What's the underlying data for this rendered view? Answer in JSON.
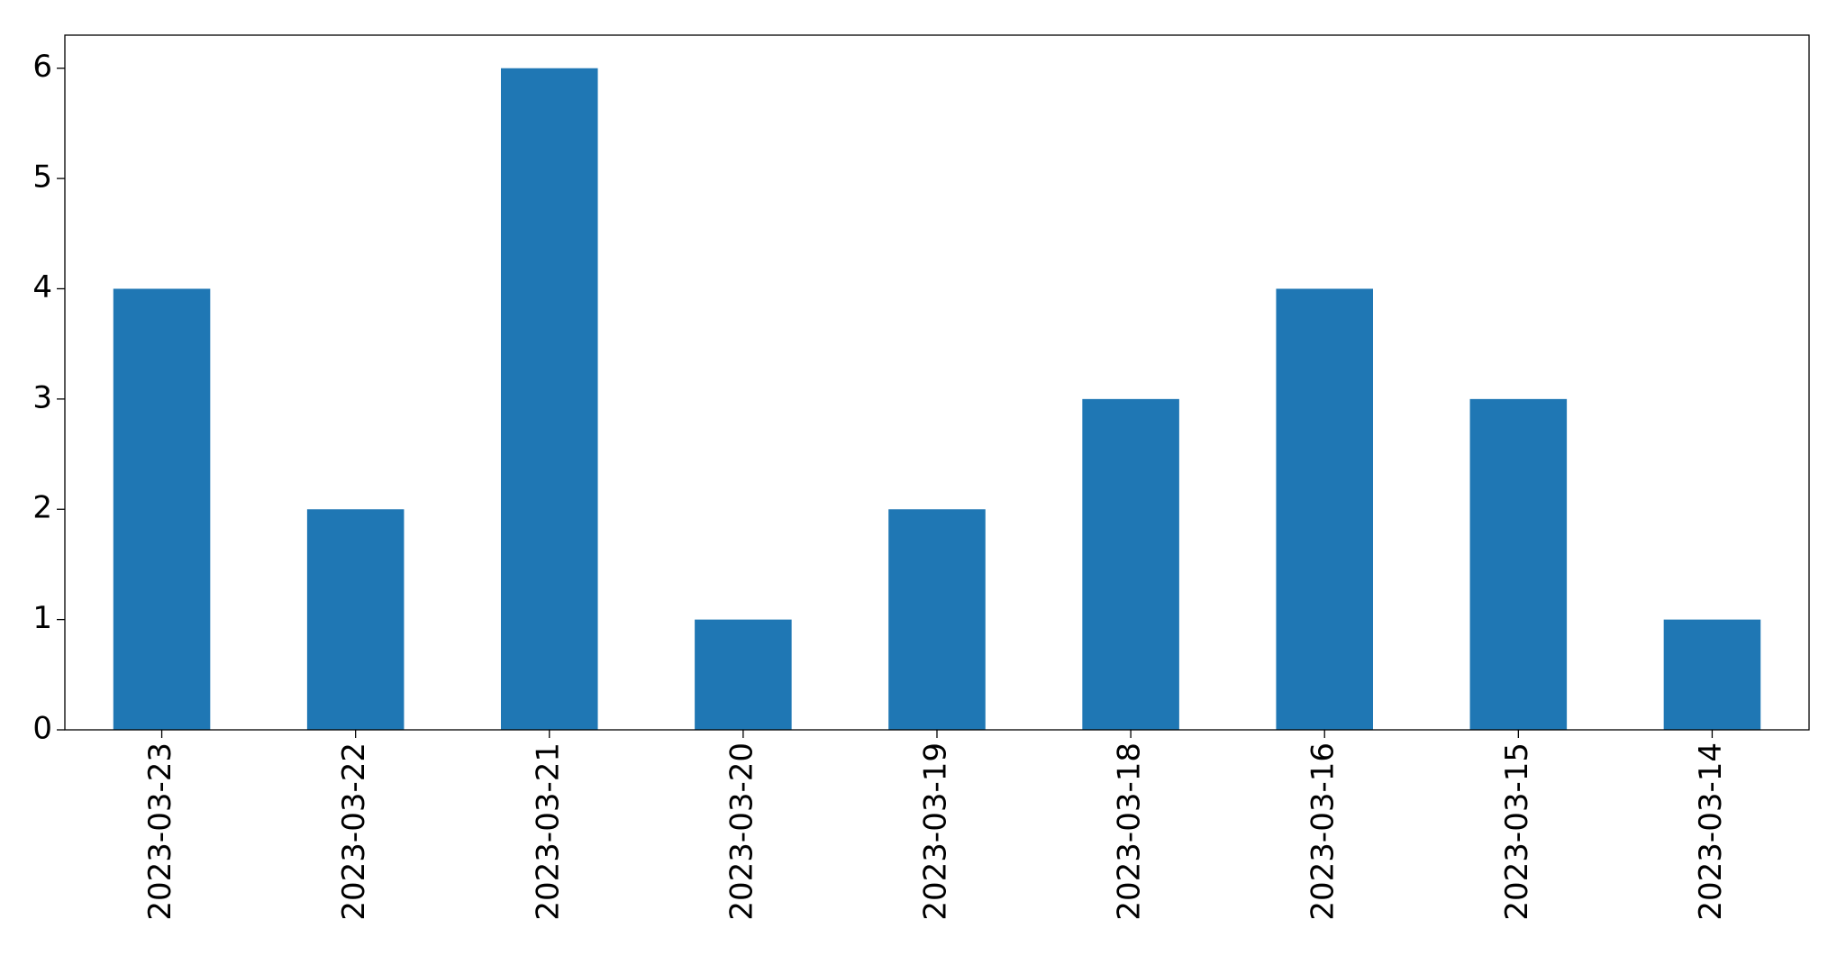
{
  "chart_data": {
    "type": "bar",
    "categories": [
      "2023-03-23",
      "2023-03-22",
      "2023-03-21",
      "2023-03-20",
      "2023-03-19",
      "2023-03-18",
      "2023-03-16",
      "2023-03-15",
      "2023-03-14"
    ],
    "values": [
      4,
      2,
      6,
      1,
      2,
      3,
      4,
      3,
      1
    ],
    "color": "#1f77b4",
    "ylim": [
      0,
      6.3
    ],
    "yticks": [
      0,
      1,
      2,
      3,
      4,
      5,
      6
    ],
    "grid": false
  }
}
